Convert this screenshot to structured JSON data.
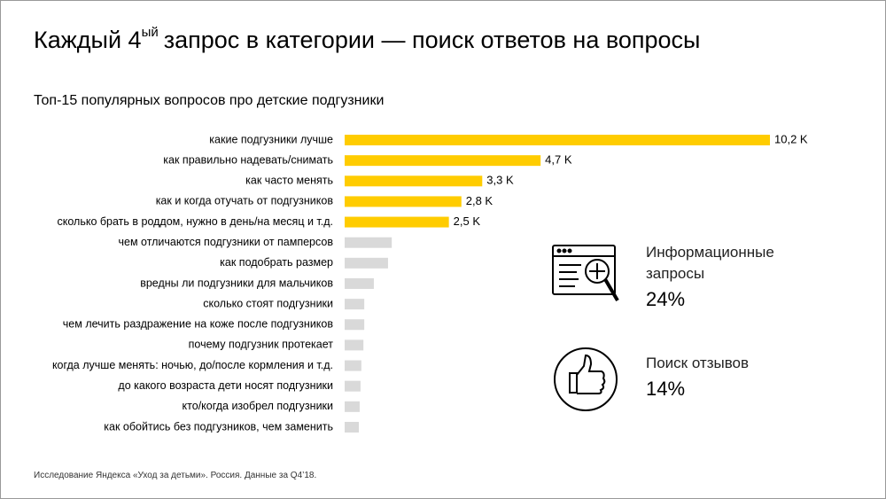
{
  "chart_data": {
    "type": "bar",
    "title": "Каждый 4",
    "title_superscript": "ый",
    "title_rest": "запрос в категории — поиск ответов на вопросы",
    "subtitle": "Топ-15 популярных вопросов про детские подгузники",
    "categories": [
      "какие подгузники лучше",
      "как правильно надевать/снимать",
      "как часто менять",
      "как и когда отучать от подгузников",
      "сколько брать в роддом, нужно в день/на месяц и т.д.",
      "чем отличаются подгузники от памперсов",
      "как подобрать размер",
      "вредны ли подгузники для мальчиков",
      "сколько стоят подгузники",
      "чем лечить раздражение на коже после подгузников",
      "почему подгузник протекает",
      "когда лучше менять: ночью, до/после кормления и т.д.",
      "до какого возраста дети носят подгузники",
      "кто/когда изобрел подгузники",
      "как обойтись без подгузников, чем заменить"
    ],
    "values": [
      10.2,
      4.7,
      3.3,
      2.8,
      2.5,
      1.13,
      1.04,
      0.7,
      0.47,
      0.47,
      0.45,
      0.4,
      0.38,
      0.36,
      0.34
    ],
    "value_labels": [
      "10,2 K",
      "4,7 K",
      "3,3 K",
      "2,8 K",
      "2,5 K",
      null,
      null,
      null,
      null,
      null,
      null,
      null,
      null,
      null,
      null
    ],
    "colors": [
      "#ffcc00",
      "#ffcc00",
      "#ffcc00",
      "#ffcc00",
      "#ffcc00",
      "#d9d9d9",
      "#d9d9d9",
      "#d9d9d9",
      "#d9d9d9",
      "#d9d9d9",
      "#d9d9d9",
      "#d9d9d9",
      "#d9d9d9",
      "#d9d9d9",
      "#d9d9d9"
    ]
  },
  "stats": [
    {
      "label": "Информационные запросы",
      "value": "24%"
    },
    {
      "label": "Поиск отзывов",
      "value": "14%"
    }
  ],
  "footnote": "Исследование Яндекса «Уход за детьми». Россия. Данные за Q4’18."
}
